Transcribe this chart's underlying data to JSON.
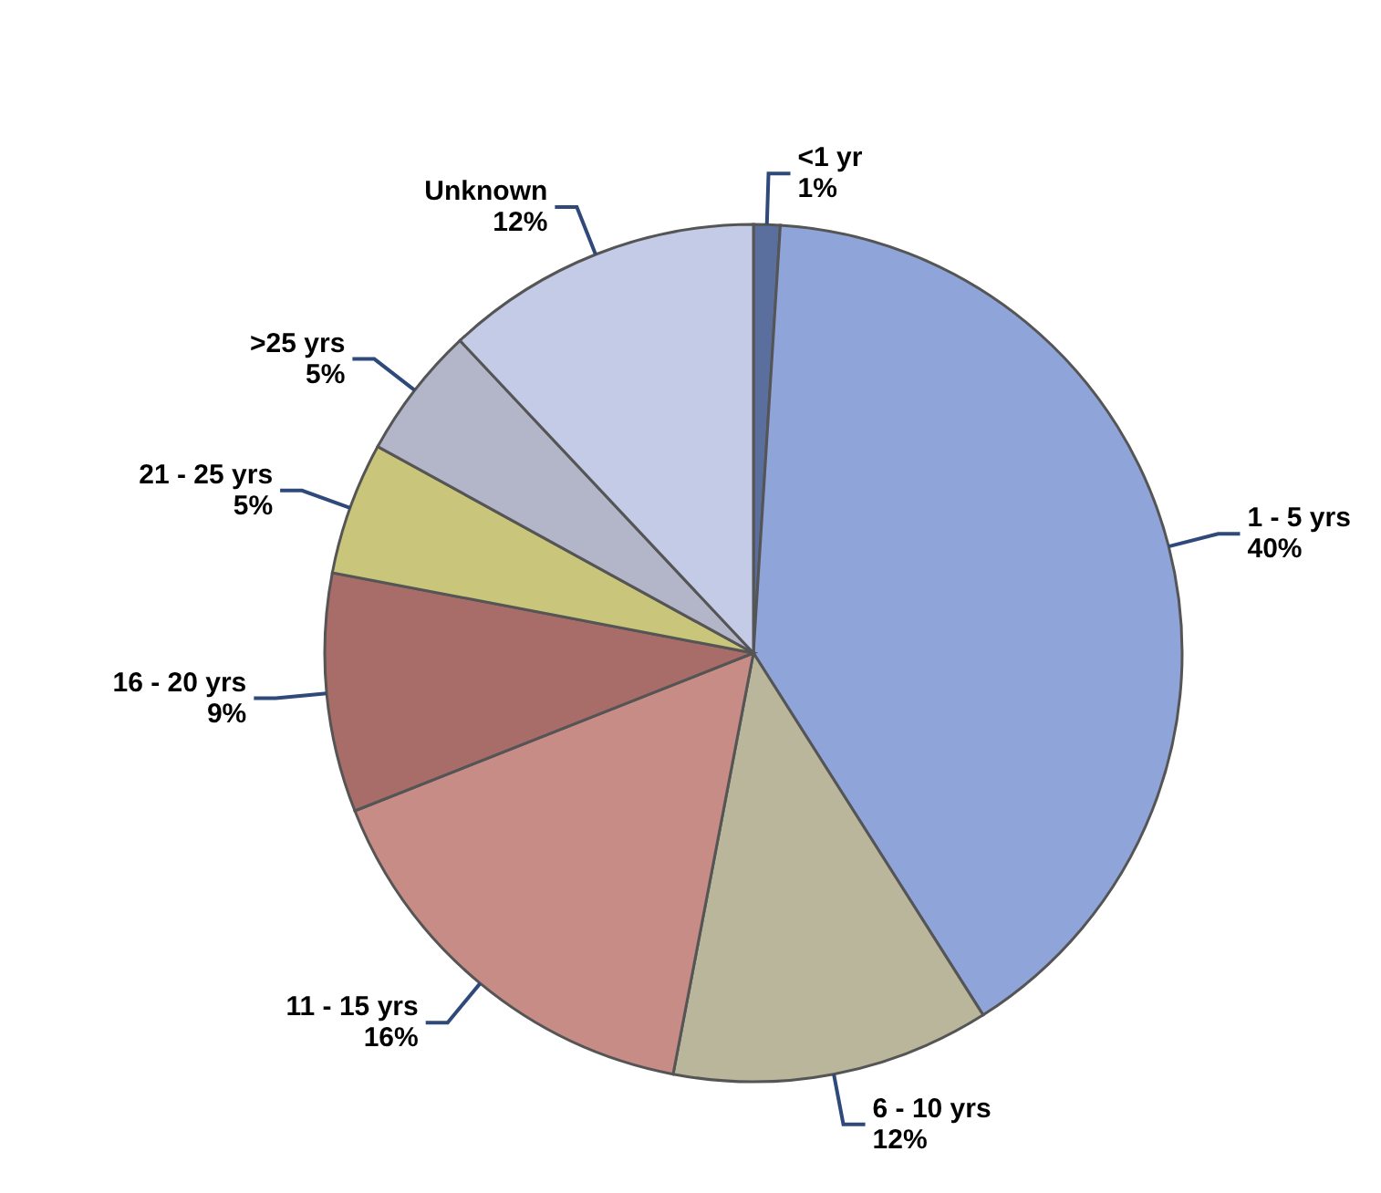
{
  "chart_data": {
    "type": "pie",
    "categories": [
      "<1 yr",
      "1 - 5 yrs",
      "6 - 10 yrs",
      "11 - 15 yrs",
      "16 - 20 yrs",
      "21 - 25 yrs",
      ">25 yrs",
      "Unknown"
    ],
    "values": [
      1,
      40,
      12,
      16,
      9,
      5,
      5,
      12
    ],
    "colors": [
      "#5b6f9e",
      "#8fa4d8",
      "#b9b69c",
      "#c88c86",
      "#a86d69",
      "#c9c67c",
      "#b3b6c9",
      "#c3cbe6"
    ],
    "value_labels": [
      "1%",
      "40%",
      "12%",
      "16%",
      "9%",
      "5%",
      "5%",
      "12%"
    ],
    "data_labels": true,
    "legend": false
  }
}
